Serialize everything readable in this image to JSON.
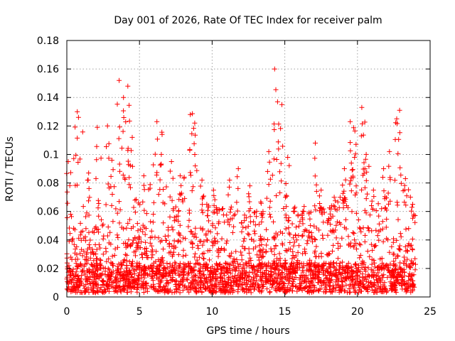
{
  "chart_data": {
    "type": "scatter",
    "title": "Day 001 of 2026, Rate Of TEC Index for receiver palm",
    "xlabel": "GPS time / hours",
    "ylabel": "ROTI / TECUs",
    "xlim": [
      0,
      25
    ],
    "ylim": [
      0,
      0.18
    ],
    "x_ticks": [
      0,
      5,
      10,
      15,
      20,
      25
    ],
    "x_tick_labels": [
      "0",
      "5",
      "10",
      "15",
      "20",
      "25"
    ],
    "y_ticks": [
      0,
      0.02,
      0.04,
      0.06,
      0.08,
      0.1,
      0.12,
      0.14,
      0.16,
      0.18
    ],
    "y_tick_labels": [
      "0",
      "0.02",
      "0.04",
      "0.06",
      "0.08",
      "0.1",
      "0.12",
      "0.14",
      "0.16",
      "0.18"
    ],
    "grid": true,
    "marker": "+",
    "series": [
      {
        "name": "ROTI",
        "color": "#ff0000",
        "notable_points": [
          {
            "x": 0.1,
            "y": 0.095
          },
          {
            "x": 0.8,
            "y": 0.126
          },
          {
            "x": 1.5,
            "y": 0.087
          },
          {
            "x": 2.1,
            "y": 0.119
          },
          {
            "x": 2.8,
            "y": 0.12
          },
          {
            "x": 3.1,
            "y": 0.096
          },
          {
            "x": 3.6,
            "y": 0.152
          },
          {
            "x": 3.9,
            "y": 0.14
          },
          {
            "x": 4.2,
            "y": 0.148
          },
          {
            "x": 4.5,
            "y": 0.112
          },
          {
            "x": 5.3,
            "y": 0.085
          },
          {
            "x": 6.2,
            "y": 0.123
          },
          {
            "x": 6.5,
            "y": 0.1
          },
          {
            "x": 7.2,
            "y": 0.095
          },
          {
            "x": 7.8,
            "y": 0.085
          },
          {
            "x": 8.5,
            "y": 0.128
          },
          {
            "x": 8.8,
            "y": 0.122
          },
          {
            "x": 9.3,
            "y": 0.082
          },
          {
            "x": 10.1,
            "y": 0.075
          },
          {
            "x": 11.2,
            "y": 0.082
          },
          {
            "x": 11.8,
            "y": 0.09
          },
          {
            "x": 12.6,
            "y": 0.078
          },
          {
            "x": 13.5,
            "y": 0.06
          },
          {
            "x": 13.9,
            "y": 0.102
          },
          {
            "x": 14.3,
            "y": 0.16
          },
          {
            "x": 14.5,
            "y": 0.137
          },
          {
            "x": 14.8,
            "y": 0.135
          },
          {
            "x": 15.2,
            "y": 0.098
          },
          {
            "x": 16.3,
            "y": 0.06
          },
          {
            "x": 17.1,
            "y": 0.108
          },
          {
            "x": 17.5,
            "y": 0.075
          },
          {
            "x": 18.4,
            "y": 0.07
          },
          {
            "x": 19.1,
            "y": 0.09
          },
          {
            "x": 19.5,
            "y": 0.123
          },
          {
            "x": 19.8,
            "y": 0.098
          },
          {
            "x": 20.3,
            "y": 0.133
          },
          {
            "x": 20.6,
            "y": 0.1
          },
          {
            "x": 21.1,
            "y": 0.075
          },
          {
            "x": 21.8,
            "y": 0.09
          },
          {
            "x": 22.2,
            "y": 0.102
          },
          {
            "x": 22.7,
            "y": 0.125
          },
          {
            "x": 22.9,
            "y": 0.131
          },
          {
            "x": 23.3,
            "y": 0.083
          },
          {
            "x": 23.8,
            "y": 0.065
          }
        ],
        "bulk": {
          "x_range": [
            0,
            24
          ],
          "typical_range": [
            0.003,
            0.05
          ],
          "baseline": 0.012,
          "activity_peaks_hours": [
            0.8,
            2.8,
            3.9,
            6.3,
            8.6,
            14.3,
            19.6,
            20.4,
            22.8
          ]
        }
      }
    ]
  }
}
